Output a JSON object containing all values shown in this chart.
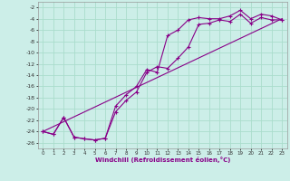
{
  "xlabel": "Windchill (Refroidissement éolien,°C)",
  "bg_color": "#cceee8",
  "grid_color": "#aaddcc",
  "line_color": "#880088",
  "xlim": [
    -0.5,
    23.5
  ],
  "ylim": [
    -27,
    -1
  ],
  "xticks": [
    0,
    1,
    2,
    3,
    4,
    5,
    6,
    7,
    8,
    9,
    10,
    11,
    12,
    13,
    14,
    15,
    16,
    17,
    18,
    19,
    20,
    21,
    22,
    23
  ],
  "yticks": [
    -2,
    -4,
    -6,
    -8,
    -10,
    -12,
    -14,
    -16,
    -18,
    -20,
    -22,
    -24,
    -26
  ],
  "line1_x": [
    0,
    1,
    2,
    3,
    4,
    5,
    6,
    7,
    8,
    9,
    10,
    11,
    12,
    13,
    14,
    15,
    16,
    17,
    18,
    19,
    20,
    21,
    22,
    23
  ],
  "line1_y": [
    -24,
    -24.5,
    -21.5,
    -25,
    -25.3,
    -25.5,
    -25.2,
    -19.5,
    -17.5,
    -16,
    -13,
    -13.5,
    -7,
    -6,
    -4.2,
    -3.8,
    -4,
    -4,
    -3.5,
    -2.5,
    -4,
    -3.2,
    -3.5,
    -4.2
  ],
  "line2_x": [
    0,
    1,
    2,
    3,
    4,
    5,
    6,
    7,
    8,
    9,
    10,
    11,
    12,
    13,
    14,
    15,
    16,
    17,
    18,
    19,
    20,
    21,
    22,
    23
  ],
  "line2_y": [
    -24,
    -24.5,
    -21.5,
    -25,
    -25.3,
    -25.5,
    -25.2,
    -20.5,
    -18.5,
    -17,
    -13.5,
    -12.5,
    -12.8,
    -11,
    -9,
    -5,
    -4.8,
    -4.2,
    -4.5,
    -3.2,
    -4.8,
    -3.8,
    -4.2,
    -4.2
  ],
  "line3_x": [
    0,
    23
  ],
  "line3_y": [
    -24,
    -4
  ]
}
